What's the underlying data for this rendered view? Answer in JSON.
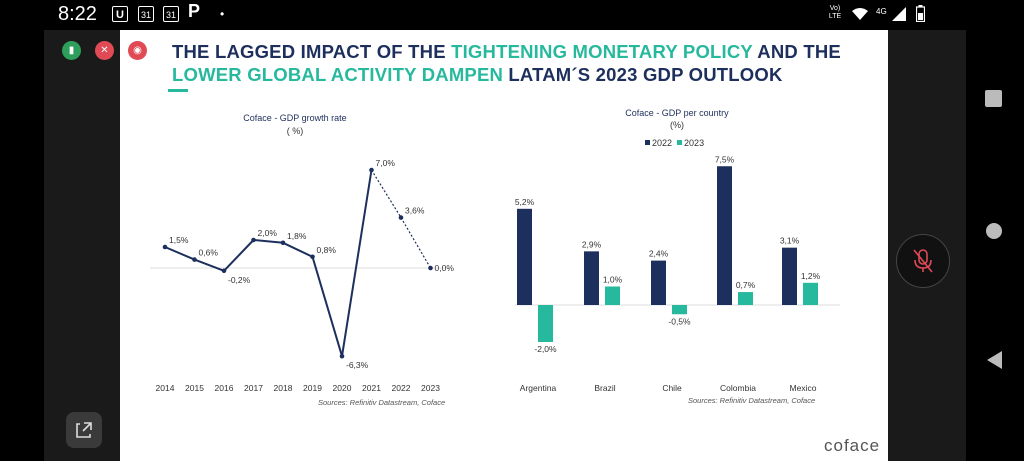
{
  "status_bar": {
    "time": "8:22",
    "icons": [
      "U",
      "31",
      "31",
      "P",
      "•"
    ],
    "network": "Vo) LTE",
    "signal": "4G"
  },
  "slide": {
    "title_line1": [
      {
        "text": "THE LAGGED IMPACT OF THE ",
        "highlight": false
      },
      {
        "text": "TIGHTENING MONETARY POLICY",
        "highlight": true
      },
      {
        "text": " AND THE",
        "highlight": false
      }
    ],
    "title_line2": [
      {
        "text": "LOWER GLOBAL ACTIVITY DAMPEN",
        "highlight": true
      },
      {
        "text": " LATAM´S 2023 GDP OUTLOOK",
        "highlight": false
      }
    ],
    "brand": "coface",
    "colors": {
      "navy": "#1d2f5c",
      "teal": "#27b99d"
    }
  },
  "chart_data": [
    {
      "type": "line",
      "title": "Coface - GDP growth rate",
      "subtitle": "( %)",
      "x": [
        "2014",
        "2015",
        "2016",
        "2017",
        "2018",
        "2019",
        "2020",
        "2021",
        "2022",
        "2023"
      ],
      "values": [
        1.5,
        0.6,
        -0.2,
        2.0,
        1.8,
        0.8,
        -6.3,
        7.0,
        3.6,
        0.0
      ],
      "labels": [
        "1,5%",
        "0,6%",
        "-0,2%",
        "2,0%",
        "1,8%",
        "0,8%",
        "-6,3%",
        "7,0%",
        "3,6%",
        "0,0%"
      ],
      "forecast_from": "2021",
      "source": "Sources: Refinitiv Datastream, Coface"
    },
    {
      "type": "bar",
      "title": "Coface - GDP per country",
      "subtitle": "(%)",
      "categories": [
        "Argentina",
        "Brazil",
        "Chile",
        "Colombia",
        "Mexico"
      ],
      "series": [
        {
          "name": "2022",
          "color": "#1d2f5c",
          "values": [
            5.2,
            2.9,
            2.4,
            7.5,
            3.1
          ],
          "labels": [
            "5,2%",
            "2,9%",
            "2,4%",
            "7,5%",
            "3,1%"
          ]
        },
        {
          "name": "2023",
          "color": "#27b99d",
          "values": [
            -2.0,
            1.0,
            -0.5,
            0.7,
            1.2
          ],
          "labels": [
            "-2,0%",
            "1,0%",
            "-0,5%",
            "0,7%",
            "1,2%"
          ]
        }
      ],
      "legend_position": "top",
      "source": "Sources: Refinitiv Datastream, Coface"
    }
  ]
}
